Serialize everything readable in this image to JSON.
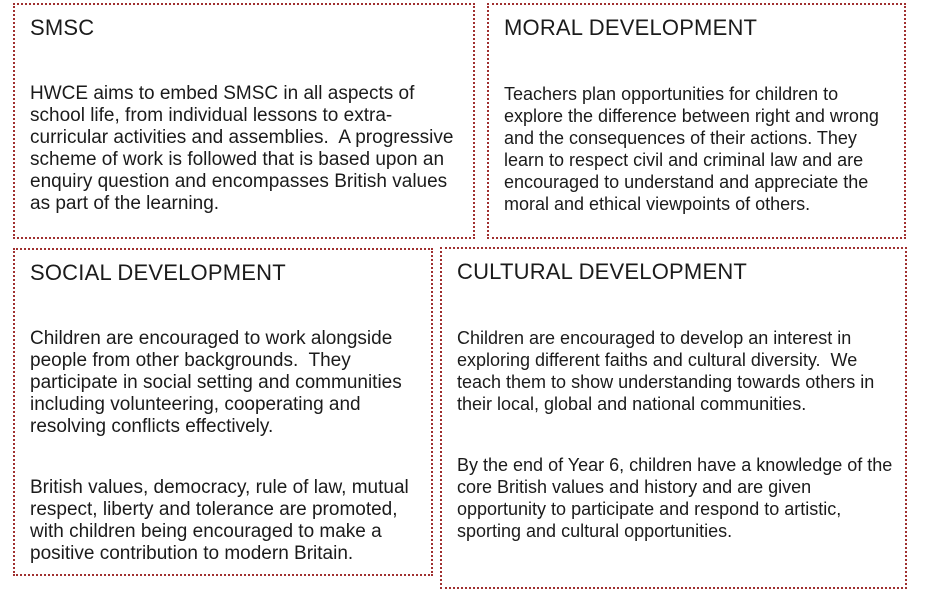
{
  "colors": {
    "border": "#a03030",
    "text": "#1b1b1b",
    "background": "#ffffff"
  },
  "cards": [
    {
      "title": "SMSC",
      "paragraphs": [
        "HWCE aims to embed SMSC in all aspects of school life, from individual lessons to extra-curricular activities and assemblies.  A progressive scheme of work is followed that is based upon an enquiry question and encompasses British values as part of the learning."
      ]
    },
    {
      "title": "MORAL DEVELOPMENT",
      "paragraphs": [
        "Teachers plan opportunities for children to explore the difference between right and wrong and the consequences of their actions. They learn to respect civil and criminal law and are encouraged to understand and appreciate the moral and ethical viewpoints of others."
      ]
    },
    {
      "title": "SOCIAL DEVELOPMENT",
      "paragraphs": [
        "Children are encouraged to work alongside people from other backgrounds.  They participate in social setting and communities including volunteering, cooperating and resolving conflicts effectively.",
        "British values, democracy, rule of law, mutual respect, liberty and tolerance are promoted, with children being encouraged to make a positive contribution to modern Britain."
      ]
    },
    {
      "title": "CULTURAL DEVELOPMENT",
      "paragraphs": [
        "Children are encouraged to develop an interest in exploring different faiths and cultural diversity.  We teach them to show understanding towards others in their local, global and national communities.",
        "By the end of Year 6, children have a knowledge of the core British values and history and are given opportunity to participate and respond to artistic, sporting and cultural opportunities."
      ]
    }
  ]
}
